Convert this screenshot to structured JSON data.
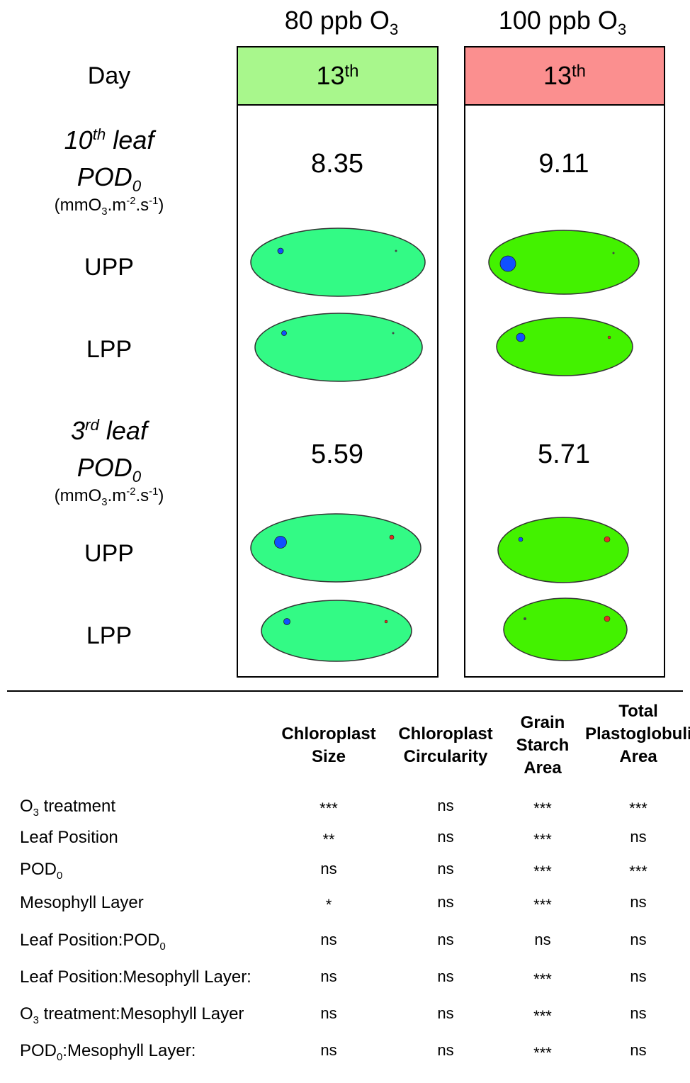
{
  "columns": [
    {
      "title": "80 ppb O",
      "title_sub": "3",
      "day": "13",
      "day_sup": "th",
      "day_color": "#A8F78C",
      "pod10": "8.35",
      "pod3": "5.59"
    },
    {
      "title": "100 ppb O",
      "title_sub": "3",
      "day": "13",
      "day_sup": "th",
      "day_color": "#FB8F8F",
      "pod10": "9.11",
      "pod3": "5.71"
    }
  ],
  "row_labels": {
    "day": "Day",
    "leaf10_a": "10",
    "leaf10_sup": "th",
    "leaf10_b": " leaf",
    "pod": "POD",
    "pod_sub": "0",
    "unit_a": "(mmO",
    "unit_sub": "3",
    "unit_b": ".m",
    "unit_sup1": "-2",
    "unit_c": ".s",
    "unit_sup2": "-1",
    "unit_d": ")",
    "upp": "UPP",
    "lpp": "LPP",
    "leaf3_a": "3",
    "leaf3_sup": "rd",
    "leaf3_b": " leaf"
  },
  "colors": {
    "chloroplast_80": "#33FA85",
    "chloroplast_100": "#43F200",
    "starch": "#1050FF",
    "plastoglobuli": "#E03020",
    "plastoglobuli_dark": "#444444"
  },
  "table": {
    "headers": [
      [
        "Chloroplast",
        "Size"
      ],
      [
        "Chloroplast",
        "Circularity"
      ],
      [
        "Grain",
        "Starch",
        "Area"
      ],
      [
        "Total",
        "Plastoglobuli",
        "Area"
      ]
    ],
    "rows": [
      {
        "name": "O",
        "name_sub": "3",
        "name_b": " treatment",
        "values": [
          "***",
          "ns",
          "***",
          "***"
        ]
      },
      {
        "name": "Leaf Position",
        "name_sub": "",
        "name_b": "",
        "values": [
          "**",
          "ns",
          "***",
          "ns"
        ]
      },
      {
        "name": "POD",
        "name_sub": "0",
        "name_b": "",
        "values": [
          "ns",
          "ns",
          "***",
          "***"
        ]
      },
      {
        "name": "Mesophyll Layer",
        "name_sub": "",
        "name_b": "",
        "values": [
          "*",
          "ns",
          "***",
          "ns"
        ]
      },
      {
        "name": "Leaf Position:POD",
        "name_sub": "0",
        "name_b": "",
        "values": [
          "ns",
          "ns",
          "ns",
          "ns"
        ]
      },
      {
        "name": "Leaf Position:Mesophyll Layer:",
        "name_sub": "",
        "name_b": "",
        "values": [
          "ns",
          "ns",
          "***",
          "ns"
        ]
      },
      {
        "name": "O",
        "name_sub": "3",
        "name_b": " treatment:Mesophyll Layer",
        "values": [
          "ns",
          "ns",
          "***",
          "ns"
        ]
      },
      {
        "name": "POD",
        "name_sub": "0",
        "name_b": ":Mesophyll Layer:",
        "values": [
          "ns",
          "ns",
          "***",
          "ns"
        ]
      }
    ]
  }
}
